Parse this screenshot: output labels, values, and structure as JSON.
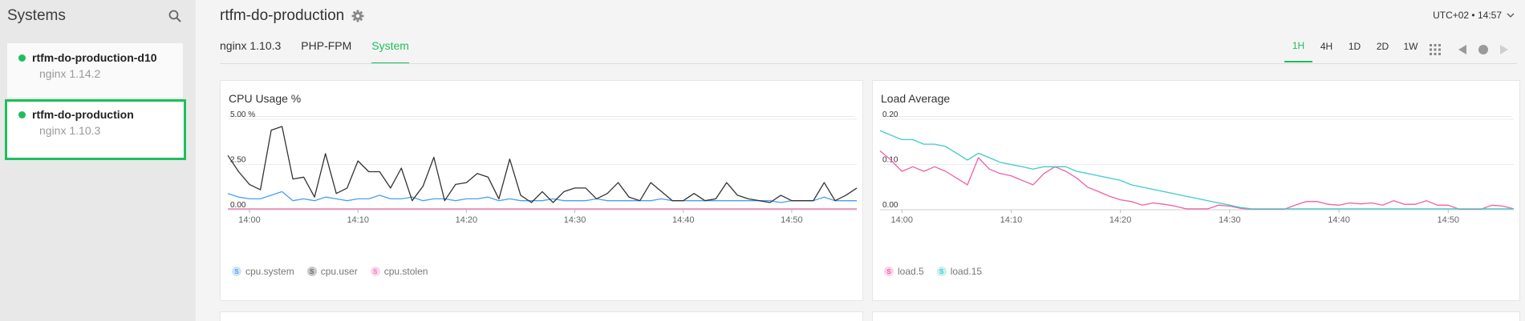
{
  "sidebar": {
    "title": "Systems",
    "items": [
      {
        "name": "rtfm-do-production-d10",
        "sub": "nginx 1.14.2",
        "active": false
      },
      {
        "name": "rtfm-do-production",
        "sub": "nginx 1.10.3",
        "active": true
      }
    ]
  },
  "header": {
    "title": "rtfm-do-production",
    "timezone": "UTC+02 • 14:57"
  },
  "tabs": [
    {
      "label": "nginx 1.10.3",
      "active": false
    },
    {
      "label": "PHP-FPM",
      "active": false
    },
    {
      "label": "System",
      "active": true
    }
  ],
  "ranges": [
    {
      "label": "1H",
      "active": true
    },
    {
      "label": "4H",
      "active": false
    },
    {
      "label": "1D",
      "active": false
    },
    {
      "label": "2D",
      "active": false
    },
    {
      "label": "1W",
      "active": false
    }
  ],
  "colors": {
    "accent": "#1dbf5c"
  },
  "chart_data": [
    {
      "type": "line",
      "title": "CPU Usage %",
      "x": [
        "13:58",
        "13:59",
        "14:00",
        "14:01",
        "14:02",
        "14:03",
        "14:04",
        "14:05",
        "14:06",
        "14:07",
        "14:08",
        "14:09",
        "14:10",
        "14:11",
        "14:12",
        "14:13",
        "14:14",
        "14:15",
        "14:16",
        "14:17",
        "14:18",
        "14:19",
        "14:20",
        "14:21",
        "14:22",
        "14:23",
        "14:24",
        "14:25",
        "14:26",
        "14:27",
        "14:28",
        "14:29",
        "14:30",
        "14:31",
        "14:32",
        "14:33",
        "14:34",
        "14:35",
        "14:36",
        "14:37",
        "14:38",
        "14:39",
        "14:40",
        "14:41",
        "14:42",
        "14:43",
        "14:44",
        "14:45",
        "14:46",
        "14:47",
        "14:48",
        "14:49",
        "14:50",
        "14:51",
        "14:52",
        "14:53",
        "14:54",
        "14:55",
        "14:56"
      ],
      "xticks": [
        "14:00",
        "14:10",
        "14:20",
        "14:30",
        "14:40",
        "14:50"
      ],
      "yticks": [
        "0.00",
        "2.50",
        "5.00 %"
      ],
      "ylim": [
        0,
        5
      ],
      "series": [
        {
          "name": "cpu.system",
          "color": "#4a9ff5",
          "values": [
            0.9,
            0.7,
            0.6,
            0.6,
            0.8,
            1.0,
            0.5,
            0.6,
            0.5,
            0.7,
            0.6,
            0.5,
            0.6,
            0.6,
            0.8,
            0.6,
            0.6,
            0.7,
            0.5,
            0.6,
            0.6,
            0.5,
            0.6,
            0.6,
            0.7,
            0.5,
            0.6,
            0.5,
            0.5,
            0.5,
            0.6,
            0.5,
            0.5,
            0.5,
            0.6,
            0.5,
            0.5,
            0.5,
            0.5,
            0.5,
            0.6,
            0.5,
            0.5,
            0.5,
            0.5,
            0.5,
            0.5,
            0.5,
            0.5,
            0.5,
            0.5,
            0.4,
            0.5,
            0.5,
            0.5,
            0.7,
            0.5,
            0.5,
            0.5
          ]
        },
        {
          "name": "cpu.user",
          "color": "#333333",
          "values": [
            3.0,
            2.1,
            1.4,
            1.1,
            4.4,
            4.6,
            1.7,
            1.8,
            0.7,
            3.1,
            0.9,
            1.2,
            2.7,
            2.1,
            2.1,
            1.2,
            2.3,
            0.5,
            1.3,
            2.9,
            0.5,
            1.4,
            1.5,
            2.0,
            1.8,
            0.6,
            2.8,
            0.8,
            0.4,
            1.0,
            0.4,
            1.0,
            1.2,
            1.2,
            0.6,
            0.9,
            1.5,
            0.7,
            0.5,
            1.5,
            1.0,
            0.5,
            0.5,
            0.9,
            0.5,
            0.6,
            1.5,
            0.8,
            0.6,
            0.5,
            0.4,
            0.8,
            0.5,
            0.5,
            0.5,
            1.5,
            0.5,
            0.8,
            1.2
          ]
        },
        {
          "name": "cpu.stolen",
          "color": "#f178b6",
          "values": [
            0.05,
            0.05,
            0.05,
            0.05,
            0.05,
            0.05,
            0.05,
            0.05,
            0.05,
            0.05,
            0.05,
            0.05,
            0.05,
            0.05,
            0.05,
            0.05,
            0.05,
            0.05,
            0.05,
            0.05,
            0.05,
            0.05,
            0.05,
            0.05,
            0.05,
            0.05,
            0.05,
            0.05,
            0.05,
            0.05,
            0.05,
            0.05,
            0.05,
            0.05,
            0.05,
            0.05,
            0.05,
            0.05,
            0.05,
            0.05,
            0.05,
            0.05,
            0.05,
            0.05,
            0.05,
            0.05,
            0.05,
            0.05,
            0.05,
            0.05,
            0.05,
            0.05,
            0.05,
            0.05,
            0.05,
            0.05,
            0.05,
            0.05,
            0.05
          ]
        }
      ]
    },
    {
      "type": "line",
      "title": "Load Average",
      "x": [
        "13:58",
        "13:59",
        "14:00",
        "14:01",
        "14:02",
        "14:03",
        "14:04",
        "14:05",
        "14:06",
        "14:07",
        "14:08",
        "14:09",
        "14:10",
        "14:11",
        "14:12",
        "14:13",
        "14:14",
        "14:15",
        "14:16",
        "14:17",
        "14:18",
        "14:19",
        "14:20",
        "14:21",
        "14:22",
        "14:23",
        "14:24",
        "14:25",
        "14:26",
        "14:27",
        "14:28",
        "14:29",
        "14:30",
        "14:31",
        "14:32",
        "14:33",
        "14:34",
        "14:35",
        "14:36",
        "14:37",
        "14:38",
        "14:39",
        "14:40",
        "14:41",
        "14:42",
        "14:43",
        "14:44",
        "14:45",
        "14:46",
        "14:47",
        "14:48",
        "14:49",
        "14:50",
        "14:51",
        "14:52",
        "14:53",
        "14:54",
        "14:55",
        "14:56"
      ],
      "xticks": [
        "14:00",
        "14:10",
        "14:20",
        "14:30",
        "14:40",
        "14:50"
      ],
      "yticks": [
        "0.00",
        "0.10",
        "0.20"
      ],
      "ylim": [
        0,
        0.2
      ],
      "series": [
        {
          "name": "load.5",
          "color": "#f05fa6",
          "values": [
            0.13,
            0.11,
            0.085,
            0.095,
            0.085,
            0.095,
            0.085,
            0.07,
            0.055,
            0.115,
            0.09,
            0.08,
            0.075,
            0.065,
            0.055,
            0.08,
            0.095,
            0.085,
            0.07,
            0.05,
            0.04,
            0.03,
            0.022,
            0.018,
            0.01,
            0.015,
            0.012,
            0.008,
            0.002,
            0.002,
            0.002,
            0.01,
            0.008,
            0.003,
            0.001,
            0.001,
            0.001,
            0.001,
            0.01,
            0.018,
            0.018,
            0.012,
            0.01,
            0.015,
            0.013,
            0.015,
            0.01,
            0.02,
            0.012,
            0.012,
            0.02,
            0.01,
            0.01,
            0.001,
            0.001,
            0.001,
            0.01,
            0.008,
            0.002
          ]
        },
        {
          "name": "load.15",
          "color": "#3ccbcb",
          "values": [
            0.175,
            0.165,
            0.155,
            0.155,
            0.145,
            0.145,
            0.14,
            0.125,
            0.11,
            0.125,
            0.115,
            0.105,
            0.1,
            0.095,
            0.09,
            0.095,
            0.095,
            0.095,
            0.085,
            0.08,
            0.075,
            0.07,
            0.065,
            0.055,
            0.05,
            0.045,
            0.04,
            0.035,
            0.03,
            0.025,
            0.02,
            0.015,
            0.01,
            0.005,
            0.002,
            0.002,
            0.002,
            0.002,
            0.002,
            0.002,
            0.002,
            0.002,
            0.002,
            0.002,
            0.002,
            0.002,
            0.002,
            0.002,
            0.002,
            0.002,
            0.002,
            0.002,
            0.002,
            0.002,
            0.002,
            0.002,
            0.002,
            0.002,
            0.002
          ]
        }
      ]
    }
  ]
}
